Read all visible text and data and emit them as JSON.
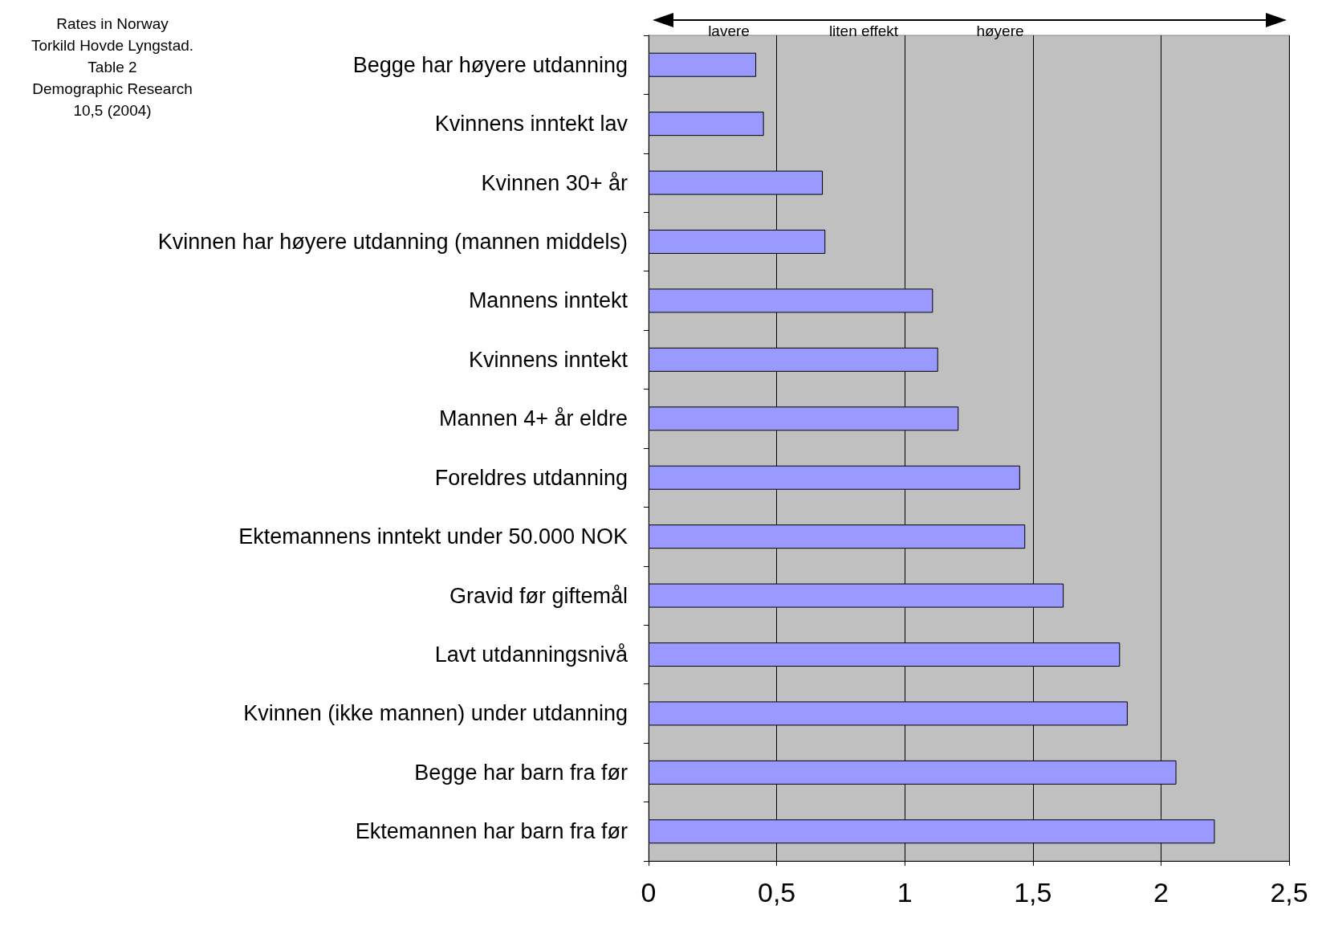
{
  "chart_data": {
    "type": "bar",
    "orientation": "horizontal",
    "categories": [
      "Begge har høyere utdanning",
      "Kvinnens inntekt lav",
      "Kvinnen 30+ år",
      "Kvinnen har høyere utdanning (mannen middels)",
      "Mannens inntekt",
      "Kvinnens inntekt",
      "Mannen 4+ år eldre",
      "Foreldres utdanning",
      "Ektemannens inntekt under 50.000 NOK",
      "Gravid før giftemål",
      "Lavt utdanningsnivå",
      "Kvinnen (ikke mannen) under utdanning",
      "Begge har barn fra før",
      "Ektemannen har barn fra før"
    ],
    "values": [
      0.42,
      0.45,
      0.68,
      0.69,
      1.11,
      1.13,
      1.21,
      1.45,
      1.47,
      1.62,
      1.84,
      1.87,
      2.06,
      2.21
    ],
    "color": "#9999ff",
    "xlim": [
      0,
      2.5
    ],
    "xticks": [
      0,
      {
        "value": 0.5,
        "label": "0,5"
      },
      1,
      {
        "value": 1.5,
        "label": "1,5"
      },
      2,
      {
        "value": 2.5,
        "label": "2,5"
      }
    ],
    "grid": "x",
    "annotations": [
      "Rates in Norway\nTorkild Hovde Lyngstad.\nTable 2\nDemographic Research\n10,5 (2004)",
      "lavere",
      "liten effekt",
      "høyere"
    ]
  }
}
